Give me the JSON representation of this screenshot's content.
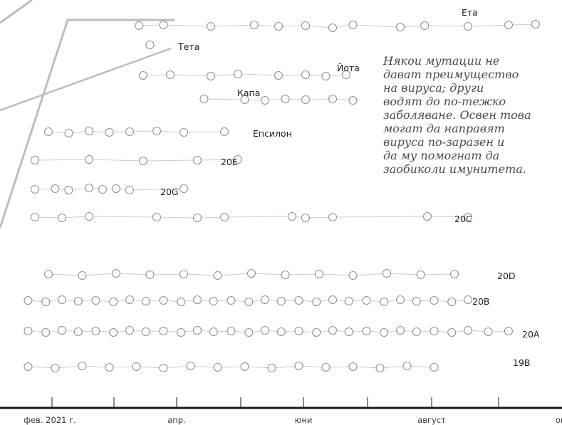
{
  "chart_data": {
    "type": "scatter",
    "description_text": "Някои мутации не\nдават преимущество\nна вируса; други\nводят до по-тежко\nзаболяване. Освен това\nмогат да направят\nвируса по-заразен и\nда му помогнат да\nзаобиколи имунитета.",
    "x_ticks": [
      "фев. 2021 г.",
      "апр.",
      "юни",
      "август",
      "окт."
    ],
    "colors": {
      "line": "#c9ccd3",
      "trunk": "#b9bdc6",
      "point_fill": "#ffffff",
      "point_stroke": "#8c919b",
      "axis": "#1a1a1a"
    },
    "series": [
      {
        "name": "Ета",
        "x": [
          0.87,
          1.05,
          1.4,
          1.72,
          1.9,
          2.1,
          2.3,
          2.45,
          2.8,
          2.98,
          3.3,
          3.6,
          3.8
        ],
        "y": [
          0.06,
          0.05,
          0.07,
          0.05,
          0.07,
          0.06,
          0.09,
          0.05,
          0.08,
          0.06,
          0.07,
          0.05,
          0.04
        ]
      },
      {
        "name": "Тета",
        "x": [
          0.95
        ],
        "y": [
          0
        ]
      },
      {
        "name": "Йота",
        "x": [
          0.9,
          1.1,
          1.4,
          1.6,
          1.9,
          2.1,
          2.25,
          2.4
        ],
        "y": [
          0.06,
          0.05,
          0.07,
          0.04,
          0.06,
          0.05,
          0.07,
          0.05
        ]
      },
      {
        "name": "Капа",
        "x": [
          1.35,
          1.65,
          1.8,
          1.95,
          2.1,
          2.3,
          2.45
        ],
        "y": [
          0.04,
          0.05,
          0.06,
          0.04,
          0.05,
          0.04,
          0.06
        ]
      },
      {
        "name": "Епсилон",
        "x": [
          0.2,
          0.35,
          0.5,
          0.65,
          0.8,
          1.0,
          1.2,
          1.5
        ],
        "y": [
          0.05,
          0.07,
          0.04,
          0.06,
          0.05,
          0.04,
          0.06,
          0.05
        ]
      },
      {
        "name": "20E",
        "x": [
          0.1,
          0.5,
          0.9,
          1.3,
          1.6
        ],
        "y": [
          0.05,
          0.04,
          0.06,
          0.05,
          0.04
        ]
      },
      {
        "name": "20G",
        "x": [
          0.1,
          0.25,
          0.35,
          0.5,
          0.6,
          0.7,
          0.8,
          1.2
        ],
        "y": [
          0.06,
          0.05,
          0.07,
          0.04,
          0.06,
          0.05,
          0.07,
          0.05
        ]
      },
      {
        "name": "20C",
        "x": [
          0.1,
          0.3,
          0.5,
          1.0,
          1.3,
          1.5,
          2.0,
          2.1,
          2.3,
          3.0,
          3.3
        ],
        "y": [
          0.05,
          0.06,
          0.04,
          0.05,
          0.06,
          0.05,
          0.04,
          0.06,
          0.05,
          0.04,
          0.05
        ]
      },
      {
        "name": "20D",
        "x": [
          0.2,
          0.45,
          0.7,
          0.95,
          1.2,
          1.45,
          1.7,
          1.95,
          2.2,
          2.45,
          2.7,
          2.95,
          3.2
        ],
        "y": [
          0.05,
          0.07,
          0.04,
          0.06,
          0.05,
          0.07,
          0.04,
          0.06,
          0.05,
          0.07,
          0.04,
          0.06,
          0.05
        ]
      },
      {
        "name": "20B",
        "x": [
          0.05,
          0.18,
          0.3,
          0.42,
          0.55,
          0.68,
          0.8,
          0.92,
          1.05,
          1.18,
          1.3,
          1.42,
          1.55,
          1.68,
          1.8,
          1.92,
          2.05,
          2.18,
          2.3,
          2.42,
          2.55,
          2.68,
          2.8,
          2.92,
          3.05,
          3.18,
          3.3
        ],
        "y": [
          0.05,
          0.07,
          0.04,
          0.06,
          0.05,
          0.07,
          0.04,
          0.06,
          0.05,
          0.07,
          0.04,
          0.06,
          0.05,
          0.07,
          0.04,
          0.06,
          0.05,
          0.07,
          0.04,
          0.06,
          0.05,
          0.07,
          0.04,
          0.06,
          0.05,
          0.07,
          0.04
        ]
      },
      {
        "name": "20A",
        "x": [
          0.05,
          0.18,
          0.3,
          0.42,
          0.55,
          0.68,
          0.8,
          0.92,
          1.05,
          1.18,
          1.3,
          1.42,
          1.55,
          1.68,
          1.8,
          1.92,
          2.05,
          2.18,
          2.3,
          2.42,
          2.55,
          2.68,
          2.8,
          2.92,
          3.05,
          3.18,
          3.3,
          3.45,
          3.6
        ],
        "y": [
          0.05,
          0.07,
          0.04,
          0.06,
          0.05,
          0.07,
          0.04,
          0.06,
          0.05,
          0.07,
          0.04,
          0.06,
          0.05,
          0.07,
          0.04,
          0.06,
          0.05,
          0.07,
          0.04,
          0.06,
          0.05,
          0.07,
          0.04,
          0.06,
          0.05,
          0.07,
          0.04,
          0.06,
          0.05
        ]
      },
      {
        "name": "19B",
        "x": [
          0.05,
          0.25,
          0.45,
          0.65,
          0.85,
          1.05,
          1.25,
          1.45,
          1.65,
          1.85,
          2.05,
          2.25,
          2.45,
          2.65,
          2.85,
          3.05
        ],
        "y": [
          0.05,
          0.07,
          0.04,
          0.06,
          0.05,
          0.07,
          0.04,
          0.06,
          0.05,
          0.07,
          0.04,
          0.06,
          0.05,
          0.07,
          0.04,
          0.06
        ]
      }
    ]
  }
}
